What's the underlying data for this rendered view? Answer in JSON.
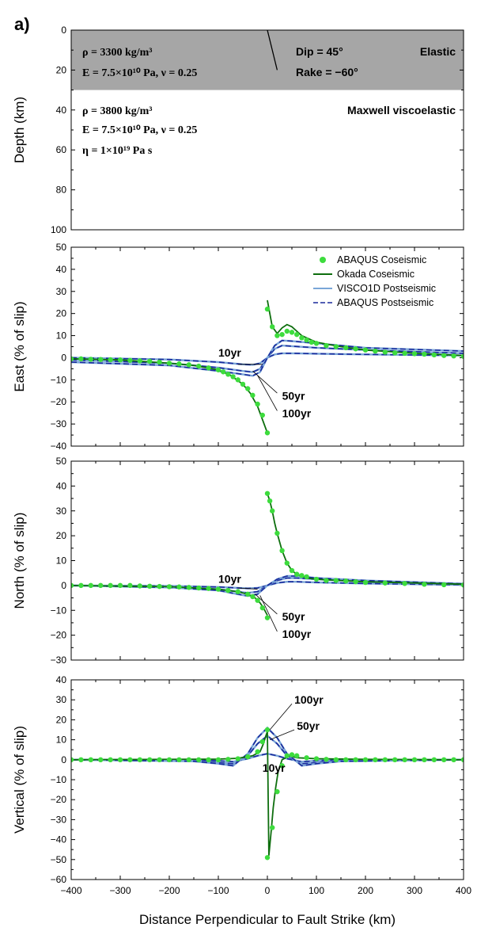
{
  "panel_label": "a)",
  "x_axis_label": "Distance Perpendicular to Fault Strike (km)",
  "model": {
    "ylabel": "Depth (km)",
    "ylim": [
      0,
      100
    ],
    "yticks": [
      "0",
      "20",
      "40",
      "60",
      "80",
      "100"
    ],
    "elastic_layer_color": "#a6a6a6",
    "elastic_layer_depth": [
      0,
      30
    ],
    "fault_trace_x": [
      0,
      20
    ],
    "fault_trace_depth": [
      0,
      20
    ],
    "upper": {
      "rho": "ρ = 3300 kg/m³",
      "E": "E = 7.5×10¹⁰ Pa, ν = 0.25",
      "dip": "Dip = 45°",
      "rake": "Rake = −60°",
      "label": "Elastic"
    },
    "lower": {
      "rho": "ρ = 3800 kg/m³",
      "E": "E =  7.5×10¹⁰ Pa, ν = 0.25",
      "eta": "η = 1×10¹⁹ Pa s",
      "label": "Maxwell viscoelastic"
    }
  },
  "legend": {
    "placement": "top-right",
    "items": [
      {
        "label": "ABAQUS Coseismic",
        "style": "dots",
        "color": "#3ddc3d"
      },
      {
        "label": "Okada Coseismic",
        "style": "solid",
        "color": "#0e6e0e"
      },
      {
        "label": "VISCO1D Postseismic",
        "style": "solid",
        "color": "#7aa6d8"
      },
      {
        "label": "ABAQUS Postseismic",
        "style": "dashed",
        "color": "#1a2a9c"
      }
    ]
  },
  "chart_data": [
    {
      "type": "line",
      "name": "east",
      "ylabel": "East (% of slip)",
      "xlim": [
        -400,
        400
      ],
      "ylim": [
        -40,
        50
      ],
      "yticks": [
        "50",
        "40",
        "30",
        "20",
        "10",
        "0",
        "−10",
        "−20",
        "−30",
        "−40"
      ],
      "coseismic_okada": {
        "left": {
          "x": [
            -400,
            -300,
            -200,
            -150,
            -100,
            -75,
            -50,
            -35,
            -20,
            -10,
            -5,
            0
          ],
          "y": [
            -0.5,
            -1,
            -2.5,
            -3.5,
            -5.5,
            -8,
            -12,
            -16,
            -22,
            -28,
            -31,
            -34
          ]
        },
        "right": {
          "x": [
            0,
            5,
            10,
            20,
            30,
            40,
            50,
            60,
            70,
            80,
            100,
            150,
            200,
            300,
            400
          ],
          "y": [
            26,
            20,
            14,
            11,
            13.5,
            15,
            14,
            12,
            10,
            9,
            7,
            5,
            3.5,
            2,
            1
          ]
        }
      },
      "coseismic_abaqus": {
        "x": [
          -400,
          -380,
          -360,
          -340,
          -320,
          -300,
          -280,
          -260,
          -240,
          -220,
          -200,
          -180,
          -160,
          -140,
          -120,
          -100,
          -90,
          -80,
          -70,
          -60,
          -50,
          -40,
          -30,
          -20,
          -10,
          0,
          0,
          10,
          20,
          30,
          40,
          50,
          60,
          70,
          80,
          90,
          100,
          120,
          140,
          160,
          180,
          200,
          220,
          240,
          260,
          280,
          300,
          320,
          340,
          360,
          380,
          400
        ],
        "y": [
          -0.5,
          -0.5,
          -0.7,
          -0.8,
          -0.9,
          -1,
          -1.2,
          -1.4,
          -1.6,
          -2,
          -2.5,
          -2.8,
          -3.2,
          -3.8,
          -4.6,
          -5.5,
          -6.4,
          -7.5,
          -8.6,
          -10,
          -12,
          -14,
          -17,
          -21,
          -26,
          -34,
          22,
          14,
          10,
          10.5,
          12,
          11.5,
          10.5,
          9,
          8,
          7,
          6.5,
          5.5,
          5,
          4.5,
          4,
          3.5,
          3,
          2.5,
          2.2,
          2,
          1.8,
          1.6,
          1.3,
          1,
          0.8,
          0.6
        ]
      },
      "postseismic": [
        {
          "name": "10yr",
          "x": [
            -400,
            -200,
            -100,
            -50,
            -30,
            -15,
            0,
            15,
            30,
            50,
            100,
            200,
            400
          ],
          "y": [
            0,
            -0.8,
            -2,
            -3,
            -3.2,
            -2.5,
            0,
            1.5,
            2,
            2,
            1.8,
            1.5,
            1
          ]
        },
        {
          "name": "50yr",
          "x": [
            -400,
            -200,
            -100,
            -50,
            -30,
            -15,
            0,
            15,
            30,
            50,
            100,
            200,
            400
          ],
          "y": [
            -1,
            -2.5,
            -4.5,
            -6,
            -6.5,
            -5,
            0,
            4,
            5.5,
            5.2,
            4.5,
            3.5,
            2
          ]
        },
        {
          "name": "100yr",
          "x": [
            -400,
            -200,
            -100,
            -50,
            -30,
            -15,
            0,
            15,
            30,
            50,
            100,
            200,
            400
          ],
          "y": [
            -2,
            -3.5,
            -6,
            -7.5,
            -8.2,
            -6.5,
            0,
            5.5,
            7.8,
            7.5,
            6.5,
            4.5,
            3
          ]
        }
      ],
      "annotations": [
        {
          "text": "10yr",
          "x": -100,
          "y": 0.5,
          "pointer": [
            [
              -60,
              -3
            ],
            [
              -10,
              -3
            ]
          ]
        },
        {
          "text": "50yr",
          "x": 30,
          "y": -19,
          "pointer": [
            [
              20,
              -16
            ],
            [
              -30,
              -6
            ]
          ]
        },
        {
          "text": "100yr",
          "x": 30,
          "y": -27,
          "pointer": [
            [
              20,
              -24
            ],
            [
              -20,
              -8
            ]
          ]
        }
      ]
    },
    {
      "type": "line",
      "name": "north",
      "ylabel": "North (% of slip)",
      "xlim": [
        -400,
        400
      ],
      "ylim": [
        -30,
        50
      ],
      "yticks": [
        "50",
        "40",
        "30",
        "20",
        "10",
        "0",
        "−10",
        "−20",
        "−30"
      ],
      "coseismic_okada": {
        "left": {
          "x": [
            -400,
            -200,
            -100,
            -60,
            -40,
            -25,
            -15,
            -8,
            0
          ],
          "y": [
            0,
            -0.5,
            -1.5,
            -2.5,
            -3.5,
            -5,
            -7,
            -9,
            -12
          ]
        },
        "right": {
          "x": [
            0,
            5,
            10,
            15,
            20,
            30,
            40,
            50,
            60,
            80,
            100,
            150,
            200,
            300,
            400
          ],
          "y": [
            37,
            34,
            30,
            25,
            21,
            14,
            9,
            6,
            4.5,
            3,
            2.5,
            2,
            1.5,
            1,
            0.5
          ]
        }
      },
      "coseismic_abaqus": {
        "x": [
          -400,
          -380,
          -360,
          -340,
          -320,
          -300,
          -280,
          -260,
          -240,
          -220,
          -200,
          -180,
          -160,
          -140,
          -120,
          -100,
          -80,
          -60,
          -40,
          -30,
          -20,
          -10,
          0,
          0,
          5,
          10,
          20,
          30,
          40,
          50,
          60,
          70,
          80,
          100,
          120,
          140,
          160,
          180,
          200,
          240,
          280,
          320,
          360,
          400
        ],
        "y": [
          0,
          0,
          0,
          0,
          0,
          0,
          0,
          -0.2,
          -0.3,
          -0.4,
          -0.5,
          -0.6,
          -0.8,
          -1,
          -1.2,
          -1.5,
          -2,
          -2.5,
          -3.5,
          -4.5,
          -6,
          -9,
          -13,
          37,
          34,
          30,
          21,
          14,
          9,
          6,
          4.5,
          4,
          3.5,
          2.5,
          2,
          2,
          1.8,
          1.5,
          1.2,
          1,
          0.8,
          0.5,
          0.3,
          0.2
        ]
      },
      "postseismic": [
        {
          "name": "10yr",
          "x": [
            -400,
            -200,
            -100,
            -60,
            -40,
            -20,
            0,
            20,
            40,
            60,
            100,
            200,
            400
          ],
          "y": [
            0,
            -0.2,
            -0.6,
            -1,
            -1.2,
            -1,
            0,
            1,
            1.5,
            1.5,
            1.2,
            0.8,
            0.2
          ]
        },
        {
          "name": "50yr",
          "x": [
            -400,
            -200,
            -100,
            -60,
            -40,
            -20,
            0,
            20,
            40,
            60,
            100,
            200,
            400
          ],
          "y": [
            0,
            -0.5,
            -1.5,
            -2.5,
            -3,
            -2.5,
            0,
            2,
            3,
            3,
            2.5,
            1.5,
            0.5
          ]
        },
        {
          "name": "100yr",
          "x": [
            -400,
            -200,
            -100,
            -60,
            -40,
            -20,
            0,
            20,
            40,
            60,
            100,
            200,
            400
          ],
          "y": [
            0,
            -0.8,
            -2,
            -3.5,
            -4.2,
            -3.5,
            0,
            2.5,
            3.8,
            3.8,
            3,
            2,
            0.7
          ]
        }
      ],
      "annotations": [
        {
          "text": "10yr",
          "x": -100,
          "y": 1,
          "pointer": [
            [
              -60,
              -1
            ],
            [
              -20,
              -1.5
            ]
          ]
        },
        {
          "text": "50yr",
          "x": 30,
          "y": -14,
          "pointer": [
            [
              20,
              -11.5
            ],
            [
              -25,
              -3.5
            ]
          ]
        },
        {
          "text": "100yr",
          "x": 30,
          "y": -21,
          "pointer": [
            [
              20,
              -18.5
            ],
            [
              -15,
              -4
            ]
          ]
        }
      ]
    },
    {
      "type": "line",
      "name": "vertical",
      "ylabel": "Vertical (% of slip)",
      "xlim": [
        -400,
        400
      ],
      "ylim": [
        -60,
        40
      ],
      "yticks": [
        "40",
        "30",
        "20",
        "10",
        "0",
        "−10",
        "−20",
        "−30",
        "−40",
        "−50",
        "−60"
      ],
      "coseismic_okada": {
        "x": [
          -400,
          -100,
          -60,
          -30,
          -15,
          -8,
          -3,
          0,
          3,
          8,
          12,
          17,
          22,
          30,
          45,
          60,
          100,
          200,
          400
        ],
        "y": [
          0,
          0.3,
          0.7,
          2,
          4,
          8,
          12,
          14,
          -48,
          -35,
          -24,
          -14,
          -6,
          0,
          2,
          1,
          0.5,
          0.2,
          0
        ]
      },
      "coseismic_abaqus": {
        "x": [
          -400,
          -380,
          -360,
          -340,
          -320,
          -300,
          -280,
          -260,
          -240,
          -220,
          -200,
          -180,
          -160,
          -140,
          -120,
          -100,
          -80,
          -60,
          -40,
          -20,
          -10,
          0,
          0,
          10,
          20,
          30,
          40,
          50,
          60,
          80,
          100,
          120,
          140,
          160,
          180,
          200,
          220,
          240,
          260,
          280,
          300,
          320,
          340,
          360,
          380,
          400
        ],
        "y": [
          0,
          0,
          0,
          0,
          0,
          0,
          0,
          0,
          0,
          0,
          0,
          0,
          0,
          0,
          0,
          0,
          0.2,
          0.5,
          1.5,
          4,
          9,
          15,
          -49,
          -34,
          -16,
          -3,
          2,
          2.5,
          2,
          1,
          0.5,
          0.2,
          0,
          0,
          0,
          0,
          0,
          0,
          0,
          0,
          0,
          0,
          0,
          0,
          0,
          0
        ]
      },
      "postseismic": [
        {
          "name": "10yr",
          "x": [
            -400,
            -150,
            -100,
            -70,
            -40,
            -20,
            0,
            20,
            40,
            70,
            100,
            150,
            400
          ],
          "y": [
            0,
            0,
            -0.5,
            -1,
            0.5,
            2,
            3,
            2,
            0.5,
            -1,
            -0.5,
            0,
            0
          ]
        },
        {
          "name": "50yr",
          "x": [
            -400,
            -150,
            -100,
            -70,
            -40,
            -20,
            0,
            20,
            40,
            70,
            100,
            150,
            400
          ],
          "y": [
            0,
            -0.5,
            -1.5,
            -2,
            2,
            8,
            12,
            8,
            2,
            -2,
            -1.5,
            -0.5,
            0
          ]
        },
        {
          "name": "100yr",
          "x": [
            -400,
            -150,
            -100,
            -70,
            -40,
            -20,
            0,
            20,
            40,
            70,
            100,
            150,
            400
          ],
          "y": [
            0,
            -0.8,
            -2,
            -3,
            3,
            11,
            16,
            11,
            3,
            -3,
            -2,
            -0.8,
            0
          ]
        }
      ],
      "annotations": [
        {
          "text": "10yr",
          "x": -10,
          "y": -6,
          "pointer": null
        },
        {
          "text": "50yr",
          "x": 60,
          "y": 15,
          "pointer": [
            [
              55,
              15
            ],
            [
              5,
              10
            ]
          ]
        },
        {
          "text": "100yr",
          "x": 55,
          "y": 28,
          "pointer": [
            [
              50,
              28
            ],
            [
              5,
              15
            ]
          ]
        }
      ]
    }
  ]
}
